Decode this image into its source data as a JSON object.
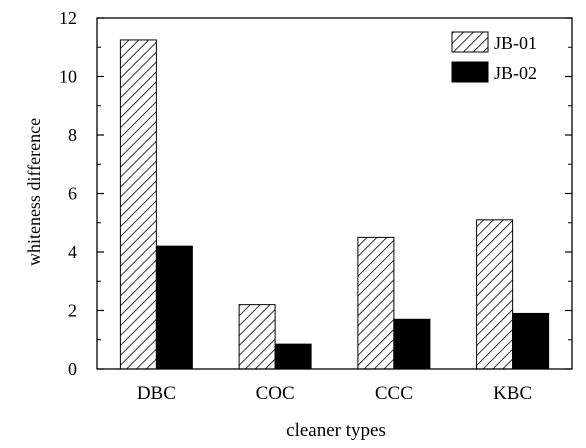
{
  "chart_data": {
    "type": "bar",
    "categories": [
      "DBC",
      "COC",
      "CCC",
      "KBC"
    ],
    "series": [
      {
        "name": "JB-01",
        "values": [
          11.25,
          2.2,
          4.5,
          5.1
        ],
        "fill": "hatched",
        "color": "#000000"
      },
      {
        "name": "JB-02",
        "values": [
          4.2,
          0.85,
          1.7,
          1.9
        ],
        "fill": "solid",
        "color": "#000000"
      }
    ],
    "xlabel": "cleaner types",
    "ylabel": "whiteness difference",
    "ylim": [
      0,
      12
    ],
    "yticks": [
      "0",
      "2",
      "4",
      "6",
      "8",
      "10",
      "12"
    ],
    "grid": false,
    "legend_position": "top-right"
  }
}
